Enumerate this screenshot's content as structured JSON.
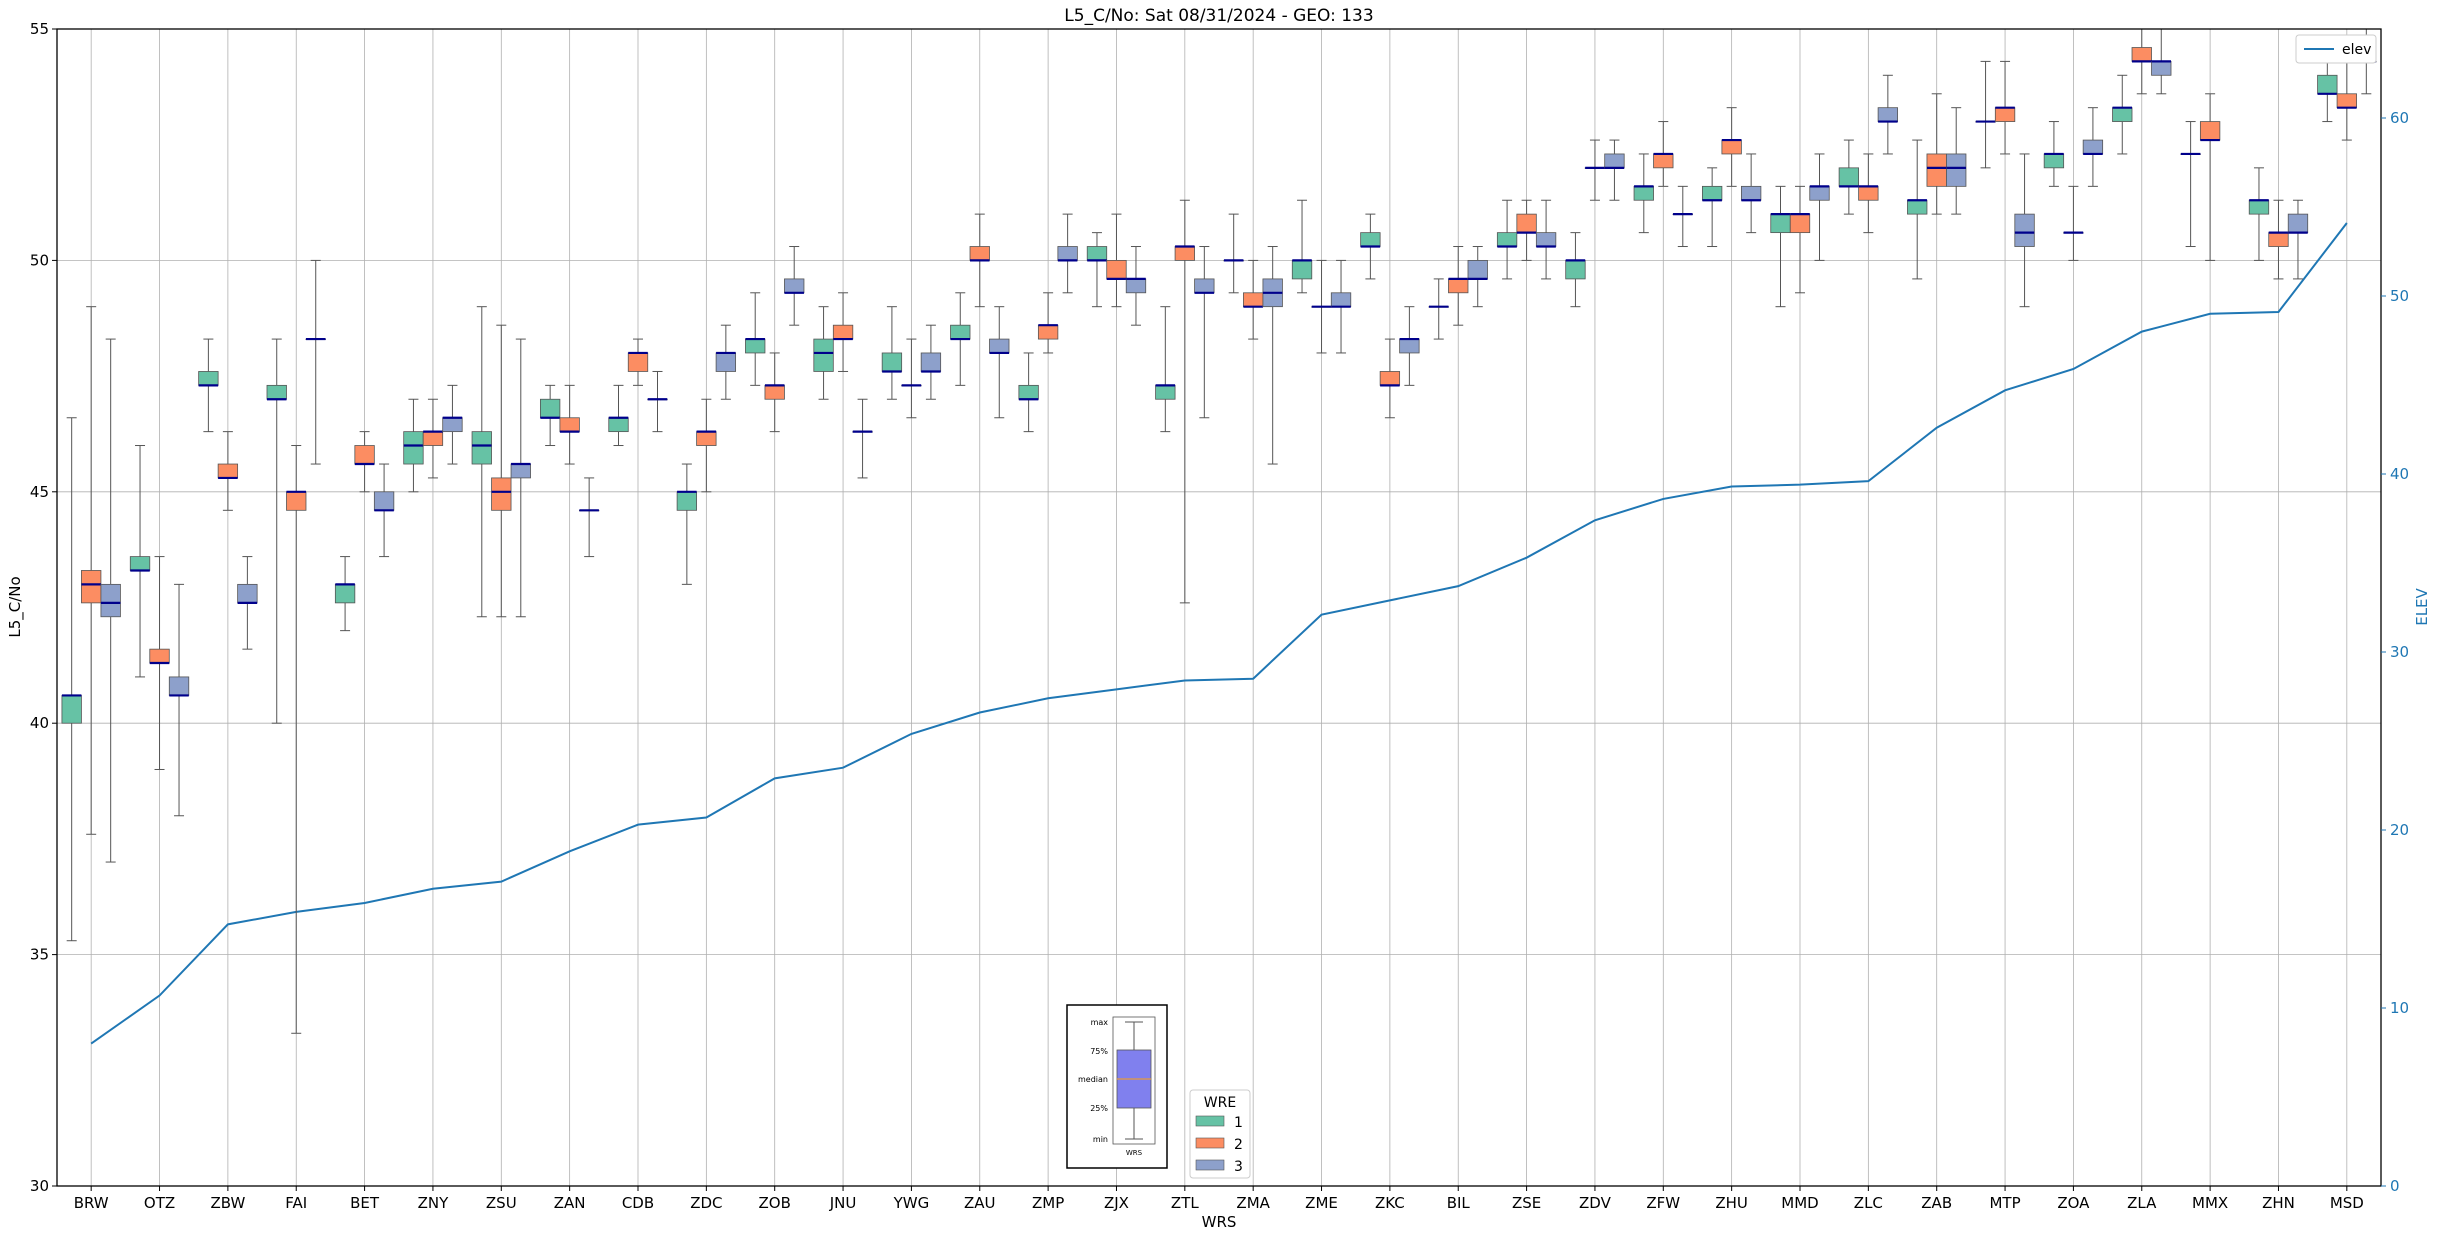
{
  "chart_data": {
    "type": "box",
    "title": "L5_C/No: Sat 08/31/2024 - GEO: 133",
    "xlabel": "WRS",
    "ylabel": "L5_C/No",
    "y2label": "ELEV",
    "ylim": [
      30,
      55
    ],
    "y2lim": [
      0,
      65
    ],
    "yticks": [
      "30",
      "35",
      "40",
      "45",
      "50",
      "55"
    ],
    "y2ticks": [
      "0",
      "10",
      "20",
      "30",
      "40",
      "50",
      "60"
    ],
    "grid": true,
    "categories": [
      "BRW",
      "OTZ",
      "ZBW",
      "FAI",
      "BET",
      "ZNY",
      "ZSU",
      "ZAN",
      "CDB",
      "ZDC",
      "ZOB",
      "JNU",
      "YWG",
      "ZAU",
      "ZMP",
      "ZJX",
      "ZTL",
      "ZMA",
      "ZME",
      "ZKC",
      "BIL",
      "ZSE",
      "ZDV",
      "ZFW",
      "ZHU",
      "MMD",
      "ZLC",
      "ZAB",
      "MTP",
      "ZOA",
      "ZLA",
      "MMX",
      "ZHN",
      "MSD"
    ],
    "wre_legend": {
      "title": "WRE",
      "items": [
        "1",
        "2",
        "3"
      ]
    },
    "wre_colors": {
      "1": "#66c2a5",
      "2": "#fc8d62",
      "3": "#8da0cb"
    },
    "median_color": "#00008b",
    "elev_line": {
      "name": "elev",
      "color": "#1f77b4",
      "values": [
        8.0,
        10.7,
        14.7,
        15.4,
        15.9,
        16.7,
        17.1,
        18.8,
        20.3,
        20.7,
        22.9,
        23.5,
        25.4,
        26.6,
        27.4,
        27.9,
        28.4,
        28.5,
        32.1,
        32.9,
        33.7,
        35.3,
        37.4,
        38.6,
        39.3,
        39.4,
        39.6,
        42.6,
        44.7,
        45.9,
        48.0,
        49.0,
        49.1,
        54.1
      ]
    },
    "boxes": [
      {
        "wrs": "BRW",
        "wre": "1",
        "min": 35.3,
        "q1": 40.0,
        "median": 40.6,
        "q3": 40.6,
        "max": 46.6
      },
      {
        "wrs": "BRW",
        "wre": "2",
        "min": 37.6,
        "q1": 42.6,
        "median": 43.0,
        "q3": 43.3,
        "max": 49.0
      },
      {
        "wrs": "BRW",
        "wre": "3",
        "min": 37.0,
        "q1": 42.3,
        "median": 42.6,
        "q3": 43.0,
        "max": 48.3
      },
      {
        "wrs": "OTZ",
        "wre": "1",
        "min": 41.0,
        "q1": 43.3,
        "median": 43.3,
        "q3": 43.6,
        "max": 46.0
      },
      {
        "wrs": "OTZ",
        "wre": "2",
        "min": 39.0,
        "q1": 41.3,
        "median": 41.3,
        "q3": 41.6,
        "max": 43.6
      },
      {
        "wrs": "OTZ",
        "wre": "3",
        "min": 38.0,
        "q1": 40.6,
        "median": 40.6,
        "q3": 41.0,
        "max": 43.0
      },
      {
        "wrs": "ZBW",
        "wre": "1",
        "min": 46.3,
        "q1": 47.3,
        "median": 47.3,
        "q3": 47.6,
        "max": 48.3
      },
      {
        "wrs": "ZBW",
        "wre": "2",
        "min": 44.6,
        "q1": 45.3,
        "median": 45.3,
        "q3": 45.6,
        "max": 46.3
      },
      {
        "wrs": "ZBW",
        "wre": "3",
        "min": 41.6,
        "q1": 42.6,
        "median": 42.6,
        "q3": 43.0,
        "max": 43.6
      },
      {
        "wrs": "FAI",
        "wre": "1",
        "min": 40.0,
        "q1": 47.0,
        "median": 47.0,
        "q3": 47.3,
        "max": 48.3
      },
      {
        "wrs": "FAI",
        "wre": "2",
        "min": 33.3,
        "q1": 44.6,
        "median": 45.0,
        "q3": 45.0,
        "max": 46.0
      },
      {
        "wrs": "FAI",
        "wre": "3",
        "min": 45.6,
        "q1": 48.3,
        "median": 48.3,
        "q3": 48.3,
        "max": 50.0
      },
      {
        "wrs": "BET",
        "wre": "1",
        "min": 42.0,
        "q1": 42.6,
        "median": 43.0,
        "q3": 43.0,
        "max": 43.6
      },
      {
        "wrs": "BET",
        "wre": "2",
        "min": 45.0,
        "q1": 45.6,
        "median": 45.6,
        "q3": 46.0,
        "max": 46.3
      },
      {
        "wrs": "BET",
        "wre": "3",
        "min": 43.6,
        "q1": 44.6,
        "median": 44.6,
        "q3": 45.0,
        "max": 45.6
      },
      {
        "wrs": "ZNY",
        "wre": "1",
        "min": 45.0,
        "q1": 45.6,
        "median": 46.0,
        "q3": 46.3,
        "max": 47.0
      },
      {
        "wrs": "ZNY",
        "wre": "2",
        "min": 45.3,
        "q1": 46.0,
        "median": 46.3,
        "q3": 46.3,
        "max": 47.0
      },
      {
        "wrs": "ZNY",
        "wre": "3",
        "min": 45.6,
        "q1": 46.3,
        "median": 46.6,
        "q3": 46.6,
        "max": 47.3
      },
      {
        "wrs": "ZSU",
        "wre": "1",
        "min": 42.3,
        "q1": 45.6,
        "median": 46.0,
        "q3": 46.3,
        "max": 49.0
      },
      {
        "wrs": "ZSU",
        "wre": "2",
        "min": 42.3,
        "q1": 44.6,
        "median": 45.0,
        "q3": 45.3,
        "max": 48.6
      },
      {
        "wrs": "ZSU",
        "wre": "3",
        "min": 42.3,
        "q1": 45.3,
        "median": 45.6,
        "q3": 45.6,
        "max": 48.3
      },
      {
        "wrs": "ZAN",
        "wre": "1",
        "min": 46.0,
        "q1": 46.6,
        "median": 46.6,
        "q3": 47.0,
        "max": 47.3
      },
      {
        "wrs": "ZAN",
        "wre": "2",
        "min": 45.6,
        "q1": 46.3,
        "median": 46.3,
        "q3": 46.6,
        "max": 47.3
      },
      {
        "wrs": "ZAN",
        "wre": "3",
        "min": 43.6,
        "q1": 44.6,
        "median": 44.6,
        "q3": 44.6,
        "max": 45.3
      },
      {
        "wrs": "CDB",
        "wre": "1",
        "min": 46.0,
        "q1": 46.3,
        "median": 46.6,
        "q3": 46.6,
        "max": 47.3
      },
      {
        "wrs": "CDB",
        "wre": "2",
        "min": 47.3,
        "q1": 47.6,
        "median": 48.0,
        "q3": 48.0,
        "max": 48.3
      },
      {
        "wrs": "CDB",
        "wre": "3",
        "min": 46.3,
        "q1": 47.0,
        "median": 47.0,
        "q3": 47.0,
        "max": 47.6
      },
      {
        "wrs": "ZDC",
        "wre": "1",
        "min": 43.0,
        "q1": 44.6,
        "median": 45.0,
        "q3": 45.0,
        "max": 45.6
      },
      {
        "wrs": "ZDC",
        "wre": "2",
        "min": 45.0,
        "q1": 46.0,
        "median": 46.3,
        "q3": 46.3,
        "max": 47.0
      },
      {
        "wrs": "ZDC",
        "wre": "3",
        "min": 47.0,
        "q1": 47.6,
        "median": 48.0,
        "q3": 48.0,
        "max": 48.6
      },
      {
        "wrs": "ZOB",
        "wre": "1",
        "min": 47.3,
        "q1": 48.0,
        "median": 48.3,
        "q3": 48.3,
        "max": 49.3
      },
      {
        "wrs": "ZOB",
        "wre": "2",
        "min": 46.3,
        "q1": 47.0,
        "median": 47.3,
        "q3": 47.3,
        "max": 48.0
      },
      {
        "wrs": "ZOB",
        "wre": "3",
        "min": 48.6,
        "q1": 49.3,
        "median": 49.3,
        "q3": 49.6,
        "max": 50.3
      },
      {
        "wrs": "JNU",
        "wre": "1",
        "min": 47.0,
        "q1": 47.6,
        "median": 48.0,
        "q3": 48.3,
        "max": 49.0
      },
      {
        "wrs": "JNU",
        "wre": "2",
        "min": 47.6,
        "q1": 48.3,
        "median": 48.3,
        "q3": 48.6,
        "max": 49.3
      },
      {
        "wrs": "JNU",
        "wre": "3",
        "min": 45.3,
        "q1": 46.3,
        "median": 46.3,
        "q3": 46.3,
        "max": 47.0
      },
      {
        "wrs": "YWG",
        "wre": "1",
        "min": 47.0,
        "q1": 47.6,
        "median": 47.6,
        "q3": 48.0,
        "max": 49.0
      },
      {
        "wrs": "YWG",
        "wre": "2",
        "min": 46.6,
        "q1": 47.3,
        "median": 47.3,
        "q3": 47.3,
        "max": 48.3
      },
      {
        "wrs": "YWG",
        "wre": "3",
        "min": 47.0,
        "q1": 47.6,
        "median": 47.6,
        "q3": 48.0,
        "max": 48.6
      },
      {
        "wrs": "ZAU",
        "wre": "1",
        "min": 47.3,
        "q1": 48.3,
        "median": 48.3,
        "q3": 48.6,
        "max": 49.3
      },
      {
        "wrs": "ZAU",
        "wre": "2",
        "min": 49.0,
        "q1": 50.0,
        "median": 50.0,
        "q3": 50.3,
        "max": 51.0
      },
      {
        "wrs": "ZAU",
        "wre": "3",
        "min": 46.6,
        "q1": 48.0,
        "median": 48.0,
        "q3": 48.3,
        "max": 49.0
      },
      {
        "wrs": "ZMP",
        "wre": "1",
        "min": 46.3,
        "q1": 47.0,
        "median": 47.0,
        "q3": 47.3,
        "max": 48.0
      },
      {
        "wrs": "ZMP",
        "wre": "2",
        "min": 48.0,
        "q1": 48.3,
        "median": 48.6,
        "q3": 48.6,
        "max": 49.3
      },
      {
        "wrs": "ZMP",
        "wre": "3",
        "min": 49.3,
        "q1": 50.0,
        "median": 50.0,
        "q3": 50.3,
        "max": 51.0
      },
      {
        "wrs": "ZJX",
        "wre": "1",
        "min": 49.0,
        "q1": 50.0,
        "median": 50.0,
        "q3": 50.3,
        "max": 50.6
      },
      {
        "wrs": "ZJX",
        "wre": "2",
        "min": 49.0,
        "q1": 49.6,
        "median": 49.6,
        "q3": 50.0,
        "max": 51.0
      },
      {
        "wrs": "ZJX",
        "wre": "3",
        "min": 48.6,
        "q1": 49.3,
        "median": 49.6,
        "q3": 49.6,
        "max": 50.3
      },
      {
        "wrs": "ZTL",
        "wre": "1",
        "min": 46.3,
        "q1": 47.0,
        "median": 47.3,
        "q3": 47.3,
        "max": 49.0
      },
      {
        "wrs": "ZTL",
        "wre": "2",
        "min": 42.6,
        "q1": 50.0,
        "median": 50.3,
        "q3": 50.3,
        "max": 51.3
      },
      {
        "wrs": "ZTL",
        "wre": "3",
        "min": 46.6,
        "q1": 49.3,
        "median": 49.3,
        "q3": 49.6,
        "max": 50.3
      },
      {
        "wrs": "ZMA",
        "wre": "1",
        "min": 49.3,
        "q1": 50.0,
        "median": 50.0,
        "q3": 50.0,
        "max": 51.0
      },
      {
        "wrs": "ZMA",
        "wre": "2",
        "min": 48.3,
        "q1": 49.0,
        "median": 49.0,
        "q3": 49.3,
        "max": 50.0
      },
      {
        "wrs": "ZMA",
        "wre": "3",
        "min": 45.6,
        "q1": 49.0,
        "median": 49.3,
        "q3": 49.6,
        "max": 50.3
      },
      {
        "wrs": "ZME",
        "wre": "1",
        "min": 49.3,
        "q1": 49.6,
        "median": 50.0,
        "q3": 50.0,
        "max": 51.3
      },
      {
        "wrs": "ZME",
        "wre": "2",
        "min": 48.0,
        "q1": 49.0,
        "median": 49.0,
        "q3": 49.0,
        "max": 50.0
      },
      {
        "wrs": "ZME",
        "wre": "3",
        "min": 48.0,
        "q1": 49.0,
        "median": 49.0,
        "q3": 49.3,
        "max": 50.0
      },
      {
        "wrs": "ZKC",
        "wre": "1",
        "min": 49.6,
        "q1": 50.3,
        "median": 50.3,
        "q3": 50.6,
        "max": 51.0
      },
      {
        "wrs": "ZKC",
        "wre": "2",
        "min": 46.6,
        "q1": 47.3,
        "median": 47.3,
        "q3": 47.6,
        "max": 48.3
      },
      {
        "wrs": "ZKC",
        "wre": "3",
        "min": 47.3,
        "q1": 48.0,
        "median": 48.3,
        "q3": 48.3,
        "max": 49.0
      },
      {
        "wrs": "BIL",
        "wre": "1",
        "min": 48.3,
        "q1": 49.0,
        "median": 49.0,
        "q3": 49.0,
        "max": 49.6
      },
      {
        "wrs": "BIL",
        "wre": "2",
        "min": 48.6,
        "q1": 49.3,
        "median": 49.6,
        "q3": 49.6,
        "max": 50.3
      },
      {
        "wrs": "BIL",
        "wre": "3",
        "min": 49.0,
        "q1": 49.6,
        "median": 49.6,
        "q3": 50.0,
        "max": 50.3
      },
      {
        "wrs": "ZSE",
        "wre": "1",
        "min": 49.6,
        "q1": 50.3,
        "median": 50.3,
        "q3": 50.6,
        "max": 51.3
      },
      {
        "wrs": "ZSE",
        "wre": "2",
        "min": 50.0,
        "q1": 50.6,
        "median": 50.6,
        "q3": 51.0,
        "max": 51.3
      },
      {
        "wrs": "ZSE",
        "wre": "3",
        "min": 49.6,
        "q1": 50.3,
        "median": 50.3,
        "q3": 50.6,
        "max": 51.3
      },
      {
        "wrs": "ZDV",
        "wre": "1",
        "min": 49.0,
        "q1": 49.6,
        "median": 50.0,
        "q3": 50.0,
        "max": 50.6
      },
      {
        "wrs": "ZDV",
        "wre": "2",
        "min": 51.3,
        "q1": 52.0,
        "median": 52.0,
        "q3": 52.0,
        "max": 52.6
      },
      {
        "wrs": "ZDV",
        "wre": "3",
        "min": 51.3,
        "q1": 52.0,
        "median": 52.0,
        "q3": 52.3,
        "max": 52.6
      },
      {
        "wrs": "ZFW",
        "wre": "1",
        "min": 50.6,
        "q1": 51.3,
        "median": 51.6,
        "q3": 51.6,
        "max": 52.3
      },
      {
        "wrs": "ZFW",
        "wre": "2",
        "min": 51.6,
        "q1": 52.0,
        "median": 52.3,
        "q3": 52.3,
        "max": 53.0
      },
      {
        "wrs": "ZFW",
        "wre": "3",
        "min": 50.3,
        "q1": 51.0,
        "median": 51.0,
        "q3": 51.0,
        "max": 51.6
      },
      {
        "wrs": "ZHU",
        "wre": "1",
        "min": 50.3,
        "q1": 51.3,
        "median": 51.3,
        "q3": 51.6,
        "max": 52.0
      },
      {
        "wrs": "ZHU",
        "wre": "2",
        "min": 51.6,
        "q1": 52.3,
        "median": 52.6,
        "q3": 52.6,
        "max": 53.3
      },
      {
        "wrs": "ZHU",
        "wre": "3",
        "min": 50.6,
        "q1": 51.3,
        "median": 51.3,
        "q3": 51.6,
        "max": 52.3
      },
      {
        "wrs": "MMD",
        "wre": "1",
        "min": 49.0,
        "q1": 50.6,
        "median": 51.0,
        "q3": 51.0,
        "max": 51.6
      },
      {
        "wrs": "MMD",
        "wre": "2",
        "min": 49.3,
        "q1": 50.6,
        "median": 51.0,
        "q3": 51.0,
        "max": 51.6
      },
      {
        "wrs": "MMD",
        "wre": "3",
        "min": 50.0,
        "q1": 51.3,
        "median": 51.6,
        "q3": 51.6,
        "max": 52.3
      },
      {
        "wrs": "ZLC",
        "wre": "1",
        "min": 51.0,
        "q1": 51.6,
        "median": 51.6,
        "q3": 52.0,
        "max": 52.6
      },
      {
        "wrs": "ZLC",
        "wre": "2",
        "min": 50.6,
        "q1": 51.3,
        "median": 51.6,
        "q3": 51.6,
        "max": 52.3
      },
      {
        "wrs": "ZLC",
        "wre": "3",
        "min": 52.3,
        "q1": 53.0,
        "median": 53.0,
        "q3": 53.3,
        "max": 54.0
      },
      {
        "wrs": "ZAB",
        "wre": "1",
        "min": 49.6,
        "q1": 51.0,
        "median": 51.3,
        "q3": 51.3,
        "max": 52.6
      },
      {
        "wrs": "ZAB",
        "wre": "2",
        "min": 51.0,
        "q1": 51.6,
        "median": 52.0,
        "q3": 52.3,
        "max": 53.6
      },
      {
        "wrs": "ZAB",
        "wre": "3",
        "min": 51.0,
        "q1": 51.6,
        "median": 52.0,
        "q3": 52.3,
        "max": 53.3
      },
      {
        "wrs": "MTP",
        "wre": "1",
        "min": 52.0,
        "q1": 53.0,
        "median": 53.0,
        "q3": 53.0,
        "max": 54.3
      },
      {
        "wrs": "MTP",
        "wre": "2",
        "min": 52.3,
        "q1": 53.0,
        "median": 53.3,
        "q3": 53.3,
        "max": 54.3
      },
      {
        "wrs": "MTP",
        "wre": "3",
        "min": 49.0,
        "q1": 50.3,
        "median": 50.6,
        "q3": 51.0,
        "max": 52.3
      },
      {
        "wrs": "ZOA",
        "wre": "1",
        "min": 51.6,
        "q1": 52.0,
        "median": 52.3,
        "q3": 52.3,
        "max": 53.0
      },
      {
        "wrs": "ZOA",
        "wre": "2",
        "min": 50.0,
        "q1": 50.6,
        "median": 50.6,
        "q3": 50.6,
        "max": 51.6
      },
      {
        "wrs": "ZOA",
        "wre": "3",
        "min": 51.6,
        "q1": 52.3,
        "median": 52.3,
        "q3": 52.6,
        "max": 53.3
      },
      {
        "wrs": "ZLA",
        "wre": "1",
        "min": 52.3,
        "q1": 53.0,
        "median": 53.3,
        "q3": 53.3,
        "max": 54.0
      },
      {
        "wrs": "ZLA",
        "wre": "2",
        "min": 53.6,
        "q1": 54.3,
        "median": 54.3,
        "q3": 54.6,
        "max": 55.0
      },
      {
        "wrs": "ZLA",
        "wre": "3",
        "min": 53.6,
        "q1": 54.0,
        "median": 54.3,
        "q3": 54.3,
        "max": 55.0
      },
      {
        "wrs": "MMX",
        "wre": "1",
        "min": 50.3,
        "q1": 52.3,
        "median": 52.3,
        "q3": 52.3,
        "max": 53.0
      },
      {
        "wrs": "MMX",
        "wre": "2",
        "min": 50.0,
        "q1": 52.6,
        "median": 52.6,
        "q3": 53.0,
        "max": 53.6
      },
      {
        "wrs": "ZHN",
        "wre": "1",
        "min": 50.0,
        "q1": 51.0,
        "median": 51.3,
        "q3": 51.3,
        "max": 52.0
      },
      {
        "wrs": "ZHN",
        "wre": "2",
        "min": 49.6,
        "q1": 50.3,
        "median": 50.6,
        "q3": 50.6,
        "max": 51.3
      },
      {
        "wrs": "ZHN",
        "wre": "3",
        "min": 49.6,
        "q1": 50.6,
        "median": 50.6,
        "q3": 51.0,
        "max": 51.3
      },
      {
        "wrs": "MSD",
        "wre": "1",
        "min": 53.0,
        "q1": 53.6,
        "median": 53.6,
        "q3": 54.0,
        "max": 54.6
      },
      {
        "wrs": "MSD",
        "wre": "2",
        "min": 52.6,
        "q1": 53.3,
        "median": 53.3,
        "q3": 53.6,
        "max": 54.3
      },
      {
        "wrs": "MSD",
        "wre": "3",
        "min": 53.6,
        "q1": 54.3,
        "median": 54.3,
        "q3": 54.3,
        "max": 55.0
      }
    ],
    "inset_key": {
      "labels": [
        "max",
        "75%",
        "median",
        "25%",
        "min"
      ],
      "caption": "WRS"
    }
  }
}
